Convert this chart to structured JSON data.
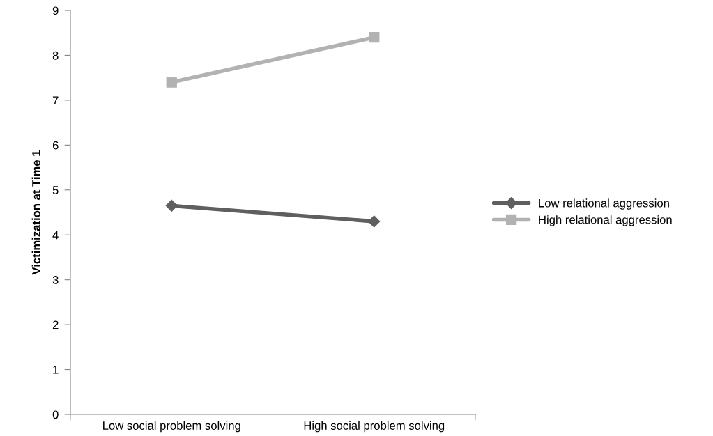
{
  "chart_data": {
    "type": "line",
    "ylabel": "Victimization at Time 1",
    "categories": [
      "Low social problem solving",
      "High social problem solving"
    ],
    "series": [
      {
        "name": "Low relational aggression",
        "color": "#5f5f5f",
        "marker": "diamond",
        "values": [
          4.65,
          4.3
        ]
      },
      {
        "name": "High relational aggression",
        "color": "#b2b2b2",
        "marker": "square",
        "values": [
          7.4,
          8.4
        ]
      }
    ],
    "ylim": [
      0,
      9
    ],
    "yticks": [
      0,
      1,
      2,
      3,
      4,
      5,
      6,
      7,
      8,
      9
    ],
    "grid": false,
    "legend": "right",
    "line_style": "solid"
  }
}
